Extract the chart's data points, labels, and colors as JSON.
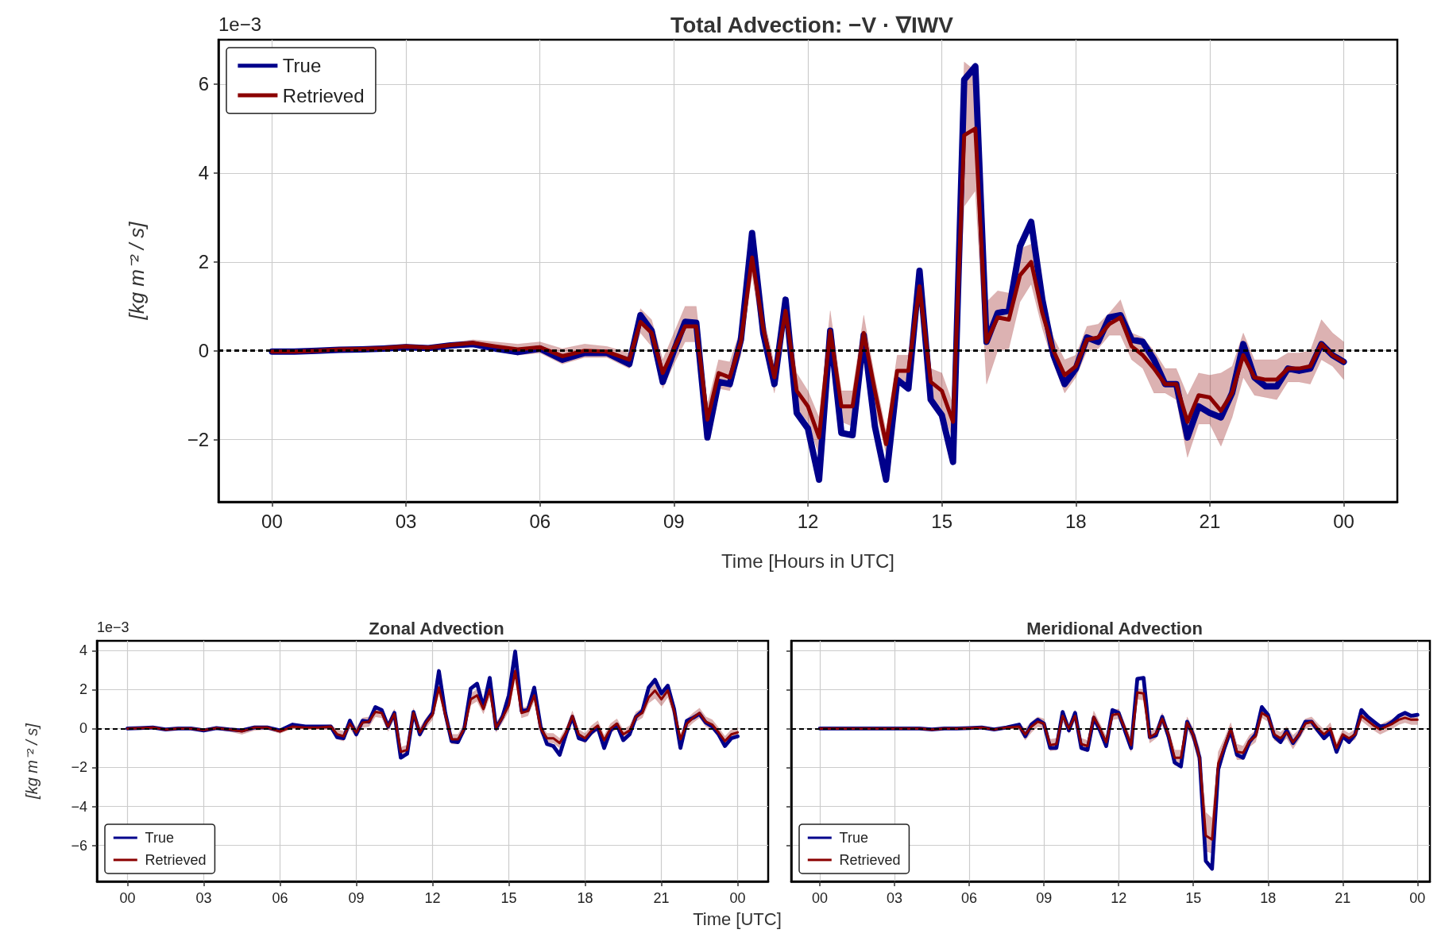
{
  "chart_data": [
    {
      "type": "line",
      "title": "Total Advection: −V · ∇IWV",
      "xlabel": "Time [Hours in UTC]",
      "ylabel": "[kg m⁻² / s]",
      "annotations": [
        "1e−3"
      ],
      "x": [
        0,
        0.5,
        1,
        1.5,
        2,
        2.5,
        3,
        3.5,
        4,
        4.5,
        5,
        5.5,
        6,
        6.5,
        7,
        7.5,
        8,
        8.25,
        8.5,
        8.75,
        9,
        9.25,
        9.5,
        9.75,
        10,
        10.25,
        10.5,
        10.75,
        11,
        11.25,
        11.5,
        11.75,
        12,
        12.25,
        12.5,
        12.75,
        13,
        13.25,
        13.5,
        13.75,
        14,
        14.25,
        14.5,
        14.75,
        15,
        15.25,
        15.5,
        15.75,
        16,
        16.25,
        16.5,
        16.75,
        17,
        17.25,
        17.5,
        17.75,
        18,
        18.25,
        18.5,
        18.75,
        19,
        19.25,
        19.5,
        19.75,
        20,
        20.25,
        20.5,
        20.75,
        21,
        21.25,
        21.5,
        21.75,
        22,
        22.25,
        22.5,
        22.75,
        23,
        23.25,
        23.5,
        23.75,
        24
      ],
      "series": [
        {
          "name": "True",
          "color": "#00008b",
          "values": [
            -0.02,
            -0.02,
            0.0,
            0.02,
            0.03,
            0.05,
            0.08,
            0.06,
            0.12,
            0.15,
            0.05,
            -0.03,
            0.05,
            -0.2,
            -0.05,
            -0.05,
            -0.3,
            0.8,
            0.45,
            -0.7,
            0.0,
            0.65,
            0.63,
            -1.95,
            -0.7,
            -0.75,
            0.25,
            2.65,
            0.4,
            -0.75,
            1.15,
            -1.4,
            -1.75,
            -2.9,
            0.45,
            -1.85,
            -1.9,
            0.35,
            -1.7,
            -2.9,
            -0.65,
            -0.85,
            1.8,
            -1.1,
            -1.45,
            -2.5,
            6.1,
            6.4,
            0.2,
            0.85,
            0.9,
            2.35,
            2.9,
            1.15,
            -0.1,
            -0.75,
            -0.4,
            0.3,
            0.2,
            0.75,
            0.8,
            0.25,
            0.2,
            -0.2,
            -0.75,
            -0.75,
            -1.95,
            -1.25,
            -1.4,
            -1.5,
            -0.95,
            0.15,
            -0.6,
            -0.8,
            -0.8,
            -0.4,
            -0.45,
            -0.4,
            0.15,
            -0.1,
            -0.25
          ]
        },
        {
          "name": "Retrieved",
          "color": "#8b0000",
          "values": [
            -0.02,
            -0.02,
            0.0,
            0.03,
            0.04,
            0.06,
            0.1,
            0.07,
            0.13,
            0.18,
            0.1,
            0.03,
            0.08,
            -0.12,
            0.0,
            -0.02,
            -0.2,
            0.65,
            0.4,
            -0.5,
            0.05,
            0.55,
            0.55,
            -1.55,
            -0.5,
            -0.6,
            0.2,
            2.1,
            0.5,
            -0.6,
            0.9,
            -0.9,
            -1.25,
            -1.95,
            0.45,
            -1.25,
            -1.25,
            0.4,
            -0.9,
            -2.1,
            -0.45,
            -0.45,
            1.45,
            -0.7,
            -0.9,
            -1.6,
            4.85,
            5.0,
            0.2,
            0.75,
            0.7,
            1.7,
            2.0,
            0.85,
            0.0,
            -0.55,
            -0.35,
            0.25,
            0.3,
            0.6,
            0.75,
            0.1,
            -0.1,
            -0.4,
            -0.75,
            -0.75,
            -1.6,
            -1.0,
            -1.05,
            -1.35,
            -0.95,
            -0.1,
            -0.6,
            -0.65,
            -0.65,
            -0.4,
            -0.4,
            -0.35,
            0.15,
            -0.1,
            -0.25
          ],
          "lower": [
            -0.07,
            -0.07,
            -0.05,
            -0.02,
            -0.01,
            0.01,
            0.05,
            0.02,
            0.08,
            0.1,
            0.0,
            -0.1,
            -0.05,
            -0.3,
            -0.15,
            -0.15,
            -0.4,
            0.4,
            0.1,
            -0.85,
            -0.3,
            0.2,
            0.2,
            -1.9,
            -0.85,
            -0.9,
            -0.1,
            1.7,
            0.1,
            -0.95,
            0.6,
            -1.3,
            -1.6,
            -2.35,
            0.05,
            -1.6,
            -1.7,
            -0.05,
            -1.3,
            -2.3,
            -0.75,
            -0.8,
            1.1,
            -1.0,
            -1.3,
            -2.0,
            3.25,
            3.6,
            -0.75,
            0.0,
            0.05,
            1.1,
            1.5,
            0.5,
            -0.3,
            -0.95,
            -0.6,
            0.0,
            0.05,
            0.35,
            0.35,
            -0.2,
            -0.4,
            -0.95,
            -0.95,
            -1.1,
            -2.4,
            -1.65,
            -1.65,
            -2.15,
            -1.5,
            -0.6,
            -1.0,
            -1.05,
            -1.1,
            -0.7,
            -0.7,
            -0.75,
            -0.2,
            -0.35,
            -0.65
          ],
          "upper": [
            0.03,
            0.03,
            0.05,
            0.08,
            0.09,
            0.12,
            0.15,
            0.12,
            0.18,
            0.25,
            0.2,
            0.15,
            0.2,
            0.05,
            0.15,
            0.1,
            -0.05,
            0.95,
            0.7,
            -0.2,
            0.4,
            1.0,
            1.0,
            -1.2,
            -0.2,
            -0.25,
            0.5,
            2.4,
            0.8,
            -0.3,
            1.2,
            -0.5,
            -0.9,
            -1.5,
            0.9,
            -0.9,
            -0.9,
            0.8,
            -0.6,
            -1.8,
            -0.1,
            -0.1,
            1.7,
            -0.4,
            -0.5,
            -1.2,
            6.5,
            6.3,
            1.1,
            1.35,
            1.3,
            2.3,
            2.4,
            1.2,
            0.3,
            -0.2,
            -0.1,
            0.55,
            0.6,
            0.85,
            1.15,
            0.4,
            0.3,
            0.0,
            -0.4,
            -0.4,
            -1.0,
            -0.5,
            -0.55,
            -0.5,
            -0.35,
            0.4,
            -0.2,
            -0.2,
            -0.2,
            -0.05,
            -0.05,
            0.0,
            0.7,
            0.4,
            0.2
          ]
        }
      ],
      "xlim": [
        -1.2,
        25.2
      ],
      "ylim": [
        -3.4,
        7.0
      ],
      "xticks": [
        {
          "value": 0,
          "label": "00"
        },
        {
          "value": 3,
          "label": "03"
        },
        {
          "value": 6,
          "label": "06"
        },
        {
          "value": 9,
          "label": "09"
        },
        {
          "value": 12,
          "label": "12"
        },
        {
          "value": 15,
          "label": "15"
        },
        {
          "value": 18,
          "label": "18"
        },
        {
          "value": 21,
          "label": "21"
        },
        {
          "value": 24,
          "label": "00"
        }
      ],
      "yticks": [
        {
          "value": -2,
          "label": "−2"
        },
        0,
        2,
        4,
        6
      ],
      "ref_lines": [
        {
          "axis": "y",
          "value": 0,
          "color": "#000000",
          "line_style": "dashed"
        }
      ],
      "grid": true,
      "legend": "top left",
      "marker": "none",
      "line_style": "solid"
    },
    {
      "type": "line",
      "title": "Zonal Advection",
      "xlabel": "Time [UTC]",
      "ylabel": "[kg m⁻² / s]",
      "annotations": [
        "1e−3"
      ],
      "x": [
        0,
        0.5,
        1,
        1.5,
        2,
        2.5,
        3,
        3.5,
        4,
        4.5,
        5,
        5.5,
        6,
        6.5,
        7,
        7.5,
        8,
        8.25,
        8.5,
        8.75,
        9,
        9.25,
        9.5,
        9.75,
        10,
        10.25,
        10.5,
        10.75,
        11,
        11.25,
        11.5,
        11.75,
        12,
        12.25,
        12.5,
        12.75,
        13,
        13.25,
        13.5,
        13.75,
        14,
        14.25,
        14.5,
        14.75,
        15,
        15.25,
        15.5,
        15.75,
        16,
        16.25,
        16.5,
        16.75,
        17,
        17.25,
        17.5,
        17.75,
        18,
        18.25,
        18.5,
        18.75,
        19,
        19.25,
        19.5,
        19.75,
        20,
        20.25,
        20.5,
        20.75,
        21,
        21.25,
        21.5,
        21.75,
        22,
        22.25,
        22.5,
        22.75,
        23,
        23.25,
        23.5,
        23.75,
        24
      ],
      "series": [
        {
          "name": "True",
          "color": "#00008b",
          "values": [
            0.0,
            0.02,
            0.05,
            -0.05,
            0.0,
            0.0,
            -0.1,
            0.02,
            -0.05,
            -0.1,
            0.05,
            0.05,
            -0.1,
            0.2,
            0.1,
            0.1,
            0.1,
            -0.45,
            -0.5,
            0.4,
            -0.3,
            0.4,
            0.35,
            1.1,
            0.95,
            0.1,
            0.8,
            -1.5,
            -1.3,
            0.85,
            -0.3,
            0.35,
            0.8,
            2.95,
            0.8,
            -0.65,
            -0.7,
            0.0,
            2.05,
            2.3,
            1.1,
            2.6,
            0.0,
            0.6,
            1.7,
            3.95,
            0.9,
            0.95,
            2.1,
            0.1,
            -0.8,
            -0.9,
            -1.35,
            -0.3,
            0.6,
            -0.5,
            -0.6,
            -0.2,
            0.05,
            -1.0,
            -0.1,
            0.2,
            -0.6,
            -0.3,
            0.6,
            0.9,
            2.1,
            2.5,
            1.8,
            2.2,
            1.0,
            -1.0,
            0.4,
            0.55,
            0.75,
            0.3,
            0.1,
            -0.3,
            -0.9,
            -0.5,
            -0.4
          ]
        },
        {
          "name": "Retrieved",
          "color": "#8b0000",
          "values": [
            0.0,
            0.02,
            0.05,
            -0.05,
            0.0,
            0.0,
            -0.08,
            0.02,
            -0.05,
            -0.15,
            0.05,
            0.05,
            -0.15,
            0.1,
            0.05,
            0.05,
            0.1,
            -0.3,
            -0.4,
            0.25,
            -0.2,
            0.3,
            0.35,
            0.85,
            0.8,
            0.1,
            0.75,
            -1.2,
            -1.1,
            0.8,
            -0.2,
            0.3,
            0.7,
            2.1,
            0.7,
            -0.55,
            -0.55,
            0.0,
            1.5,
            1.7,
            1.0,
            2.0,
            0.05,
            0.55,
            1.2,
            2.95,
            0.8,
            0.9,
            1.7,
            0.0,
            -0.5,
            -0.5,
            -0.75,
            -0.2,
            0.65,
            -0.3,
            -0.5,
            -0.1,
            0.15,
            -0.6,
            0.0,
            0.25,
            -0.3,
            -0.1,
            0.6,
            0.8,
            1.6,
            1.95,
            1.5,
            1.95,
            0.9,
            -0.55,
            0.25,
            0.55,
            0.8,
            0.35,
            0.2,
            -0.2,
            -0.65,
            -0.3,
            -0.2
          ],
          "lower": [
            -0.05,
            -0.03,
            0.0,
            -0.1,
            -0.05,
            -0.05,
            -0.15,
            -0.05,
            -0.15,
            -0.3,
            -0.1,
            -0.05,
            -0.25,
            0.0,
            -0.05,
            -0.05,
            -0.05,
            -0.55,
            -0.65,
            0.0,
            -0.45,
            0.05,
            0.1,
            0.6,
            0.55,
            -0.15,
            0.5,
            -1.45,
            -1.35,
            0.55,
            -0.45,
            0.05,
            0.45,
            1.8,
            0.45,
            -0.8,
            -0.8,
            -0.25,
            1.2,
            1.4,
            0.75,
            1.65,
            -0.2,
            0.3,
            0.9,
            2.55,
            0.55,
            0.65,
            1.4,
            -0.25,
            -0.75,
            -0.75,
            -1.0,
            -0.45,
            0.4,
            -0.55,
            -0.75,
            -0.35,
            -0.1,
            -0.85,
            -0.25,
            0.0,
            -0.55,
            -0.35,
            0.35,
            0.55,
            1.3,
            1.55,
            1.15,
            1.6,
            0.6,
            -0.8,
            0.0,
            0.3,
            0.55,
            0.1,
            -0.05,
            -0.45,
            -0.9,
            -0.55,
            -0.45
          ],
          "upper": [
            0.05,
            0.07,
            0.1,
            0.0,
            0.05,
            0.05,
            0.0,
            0.1,
            0.05,
            0.0,
            0.15,
            0.15,
            -0.05,
            0.2,
            0.15,
            0.15,
            0.2,
            -0.05,
            -0.15,
            0.5,
            0.05,
            0.55,
            0.6,
            1.1,
            1.05,
            0.35,
            1.0,
            -0.95,
            -0.85,
            1.05,
            0.05,
            0.55,
            0.95,
            2.4,
            0.95,
            -0.3,
            -0.3,
            0.25,
            1.8,
            2.0,
            1.25,
            2.35,
            0.3,
            0.8,
            1.5,
            3.35,
            1.05,
            1.15,
            2.0,
            0.25,
            -0.25,
            -0.25,
            -0.5,
            0.05,
            0.9,
            -0.05,
            -0.25,
            0.15,
            0.4,
            -0.35,
            0.25,
            0.5,
            -0.05,
            0.15,
            0.85,
            1.05,
            1.9,
            2.35,
            1.85,
            2.3,
            1.2,
            -0.3,
            0.5,
            0.8,
            1.05,
            0.6,
            0.45,
            0.05,
            -0.4,
            -0.05,
            0.05
          ]
        }
      ],
      "xlim": [
        -1.2,
        25.2
      ],
      "ylim": [
        -7.85,
        4.5
      ],
      "xticks": [
        {
          "value": 0,
          "label": "00"
        },
        {
          "value": 3,
          "label": "03"
        },
        {
          "value": 6,
          "label": "06"
        },
        {
          "value": 9,
          "label": "09"
        },
        {
          "value": 12,
          "label": "12"
        },
        {
          "value": 15,
          "label": "15"
        },
        {
          "value": 18,
          "label": "18"
        },
        {
          "value": 21,
          "label": "21"
        },
        {
          "value": 24,
          "label": "00"
        }
      ],
      "yticks": [
        {
          "value": -6,
          "label": "−6"
        },
        {
          "value": -4,
          "label": "−4"
        },
        {
          "value": -2,
          "label": "−2"
        },
        0,
        2,
        4
      ],
      "ref_lines": [
        {
          "axis": "y",
          "value": 0,
          "color": "#000000",
          "line_style": "dashed"
        }
      ],
      "grid": true,
      "legend": "bottom left",
      "marker": "none",
      "line_style": "solid"
    },
    {
      "type": "line",
      "title": "Meridional Advection",
      "x": [
        0,
        0.5,
        1,
        1.5,
        2,
        2.5,
        3,
        3.5,
        4,
        4.5,
        5,
        5.5,
        6,
        6.5,
        7,
        7.5,
        8,
        8.25,
        8.5,
        8.75,
        9,
        9.25,
        9.5,
        9.75,
        10,
        10.25,
        10.5,
        10.75,
        11,
        11.25,
        11.5,
        11.75,
        12,
        12.25,
        12.5,
        12.75,
        13,
        13.25,
        13.5,
        13.75,
        14,
        14.25,
        14.5,
        14.75,
        15,
        15.25,
        15.5,
        15.75,
        16,
        16.25,
        16.5,
        16.75,
        17,
        17.25,
        17.5,
        17.75,
        18,
        18.25,
        18.5,
        18.75,
        19,
        19.25,
        19.5,
        19.75,
        20,
        20.25,
        20.5,
        20.75,
        21,
        21.25,
        21.5,
        21.75,
        22,
        22.25,
        22.5,
        22.75,
        23,
        23.25,
        23.5,
        23.75,
        24
      ],
      "series": [
        {
          "name": "True",
          "color": "#00008b",
          "values": [
            0,
            0,
            0,
            0,
            0,
            0,
            0,
            0,
            0,
            -0.05,
            0,
            0,
            0.02,
            0.05,
            -0.05,
            0.05,
            0.2,
            -0.4,
            0.2,
            0.45,
            0.25,
            -1.0,
            -1.0,
            0.85,
            -0.1,
            0.8,
            -1.0,
            -1.1,
            0.55,
            -0.1,
            -0.9,
            0.95,
            0.8,
            -0.1,
            -1.0,
            2.55,
            2.6,
            -0.45,
            -0.35,
            0.6,
            -0.4,
            -1.75,
            -1.95,
            0.35,
            -0.35,
            -1.5,
            -6.8,
            -7.2,
            -2.1,
            -1.0,
            -0.1,
            -1.35,
            -1.5,
            -0.7,
            -0.3,
            1.1,
            0.7,
            -0.4,
            -0.7,
            -0.1,
            -0.75,
            -0.3,
            0.35,
            0.35,
            -0.1,
            -0.5,
            -0.2,
            -1.2,
            -0.4,
            -0.7,
            -0.3,
            0.95,
            0.6,
            0.35,
            0.1,
            0.15,
            0.35,
            0.65,
            0.8,
            0.65,
            0.7
          ]
        },
        {
          "name": "Retrieved",
          "color": "#8b0000",
          "values": [
            0,
            0,
            0,
            0,
            0,
            0,
            0,
            0,
            0,
            -0.05,
            0,
            0,
            0.02,
            0.05,
            -0.05,
            0.05,
            0.1,
            -0.3,
            0.1,
            0.35,
            0.25,
            -0.85,
            -0.8,
            0.65,
            0.0,
            0.65,
            -0.8,
            -0.9,
            0.6,
            0.0,
            -0.7,
            0.7,
            0.75,
            0.0,
            -0.85,
            1.85,
            1.8,
            -0.45,
            -0.25,
            0.5,
            -0.3,
            -1.5,
            -1.5,
            0.3,
            -0.35,
            -1.5,
            -5.5,
            -5.7,
            -1.8,
            -0.9,
            0.0,
            -1.2,
            -1.25,
            -0.65,
            -0.4,
            0.8,
            0.6,
            -0.3,
            -0.5,
            -0.2,
            -0.7,
            -0.3,
            0.25,
            0.35,
            0.0,
            -0.3,
            0.0,
            -1.0,
            -0.3,
            -0.5,
            -0.3,
            0.65,
            0.4,
            0.15,
            -0.05,
            0.1,
            0.25,
            0.45,
            0.55,
            0.45,
            0.45
          ],
          "lower": [
            -0.05,
            -0.05,
            -0.05,
            -0.05,
            -0.05,
            -0.05,
            -0.05,
            -0.05,
            -0.05,
            -0.1,
            -0.05,
            -0.05,
            -0.03,
            0.0,
            -0.1,
            0.0,
            -0.05,
            -0.6,
            -0.2,
            0.1,
            0.0,
            -1.15,
            -1.1,
            0.35,
            -0.25,
            0.4,
            -1.1,
            -1.2,
            0.3,
            -0.25,
            -1.0,
            0.45,
            0.5,
            -0.25,
            -1.2,
            1.5,
            1.45,
            -0.75,
            -0.5,
            0.2,
            -0.6,
            -1.9,
            -1.9,
            0.0,
            -0.7,
            -2.0,
            -6.3,
            -6.4,
            -2.4,
            -1.3,
            -0.3,
            -1.6,
            -1.6,
            -0.95,
            -0.7,
            0.55,
            0.35,
            -0.6,
            -0.8,
            -0.5,
            -1.05,
            -0.55,
            0.0,
            0.1,
            -0.25,
            -0.55,
            -0.3,
            -1.25,
            -0.55,
            -0.75,
            -0.55,
            0.4,
            0.15,
            -0.1,
            -0.3,
            -0.15,
            0.0,
            0.2,
            0.3,
            0.2,
            0.2
          ],
          "upper": [
            0.05,
            0.05,
            0.05,
            0.05,
            0.05,
            0.05,
            0.05,
            0.05,
            0.05,
            0.0,
            0.05,
            0.05,
            0.07,
            0.1,
            0.0,
            0.1,
            0.25,
            0.0,
            0.35,
            0.6,
            0.5,
            -0.55,
            -0.5,
            0.95,
            0.25,
            0.95,
            -0.5,
            -0.6,
            0.9,
            0.25,
            -0.4,
            0.95,
            1.0,
            0.25,
            -0.5,
            2.05,
            2.0,
            -0.15,
            0.0,
            0.8,
            0.0,
            -1.1,
            -1.1,
            0.6,
            0.0,
            -1.0,
            -4.3,
            -4.6,
            -1.2,
            -0.5,
            0.3,
            -0.8,
            -0.9,
            -0.35,
            -0.1,
            1.05,
            0.85,
            0.0,
            -0.2,
            0.1,
            -0.35,
            -0.05,
            0.5,
            0.6,
            0.25,
            -0.05,
            0.3,
            -0.75,
            -0.05,
            -0.25,
            -0.05,
            0.9,
            0.65,
            0.4,
            0.2,
            0.35,
            0.5,
            0.7,
            0.8,
            0.7,
            0.7
          ]
        }
      ],
      "xlim": [
        -1.15,
        24.5
      ],
      "ylim": [
        -7.85,
        4.5
      ],
      "xticks": [
        {
          "value": 0,
          "label": "00"
        },
        {
          "value": 3,
          "label": "03"
        },
        {
          "value": 6,
          "label": "06"
        },
        {
          "value": 9,
          "label": "09"
        },
        {
          "value": 12,
          "label": "12"
        },
        {
          "value": 15,
          "label": "15"
        },
        {
          "value": 18,
          "label": "18"
        },
        {
          "value": 21,
          "label": "21"
        },
        {
          "value": 24,
          "label": "00"
        }
      ],
      "yticks": [
        -6,
        -4,
        -2,
        0,
        2,
        4
      ],
      "tick_labels": "x",
      "ref_lines": [
        {
          "axis": "y",
          "value": 0,
          "color": "#000000",
          "line_style": "dashed"
        }
      ],
      "grid": true,
      "legend": "bottom left",
      "marker": "none",
      "line_style": "solid"
    }
  ]
}
